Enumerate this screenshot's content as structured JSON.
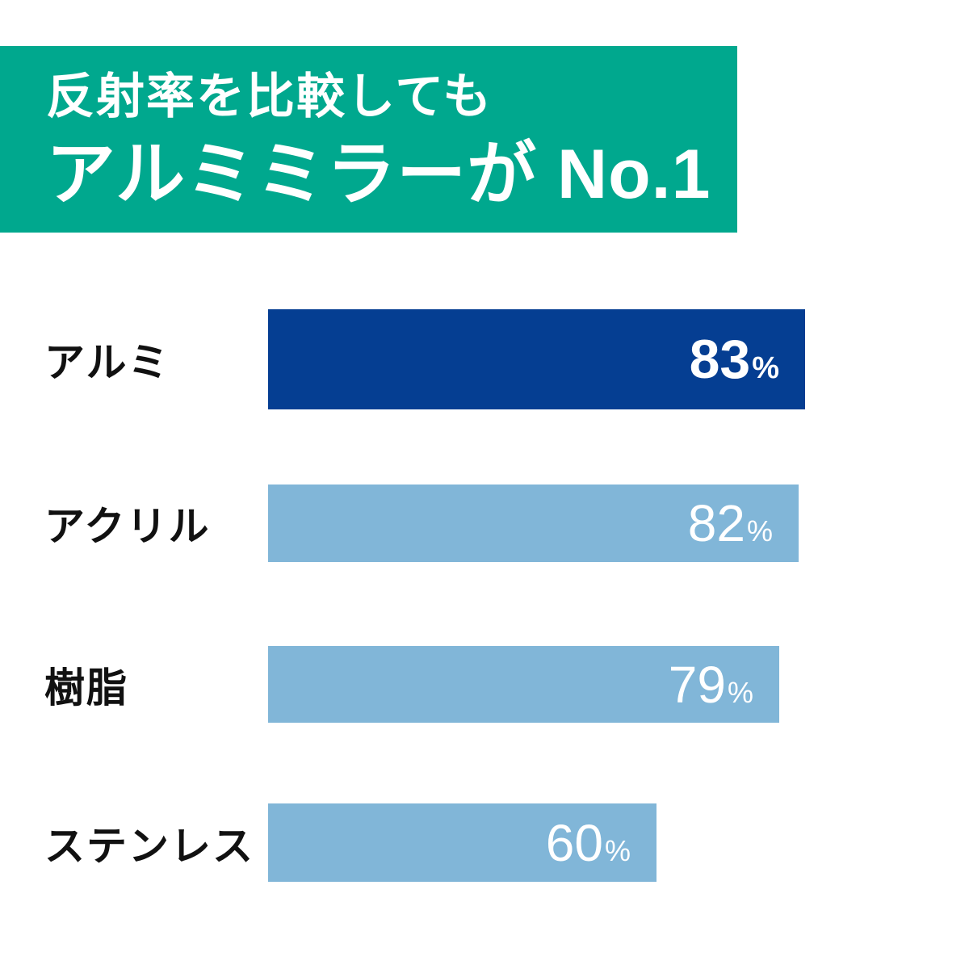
{
  "header": {
    "line1": "反射率を比較しても",
    "line2": "アルミミラーが No.1",
    "bg_color": "#00A88E",
    "text_color": "#FFFFFF"
  },
  "chart_data": {
    "type": "bar",
    "orientation": "horizontal",
    "title": "反射率を比較してもアルミミラーが No.1",
    "categories": [
      "アルミ",
      "アクリル",
      "樹脂",
      "ステンレス"
    ],
    "values": [
      83,
      82,
      79,
      60
    ],
    "unit": "%",
    "xlim": [
      0,
      100
    ],
    "grid": false,
    "legend": false,
    "highlight_index": 0,
    "colors": {
      "highlight_bar": "#053E92",
      "bar": "#81B6D8",
      "value_text": "#FFFFFF",
      "label_text": "#111111"
    }
  }
}
